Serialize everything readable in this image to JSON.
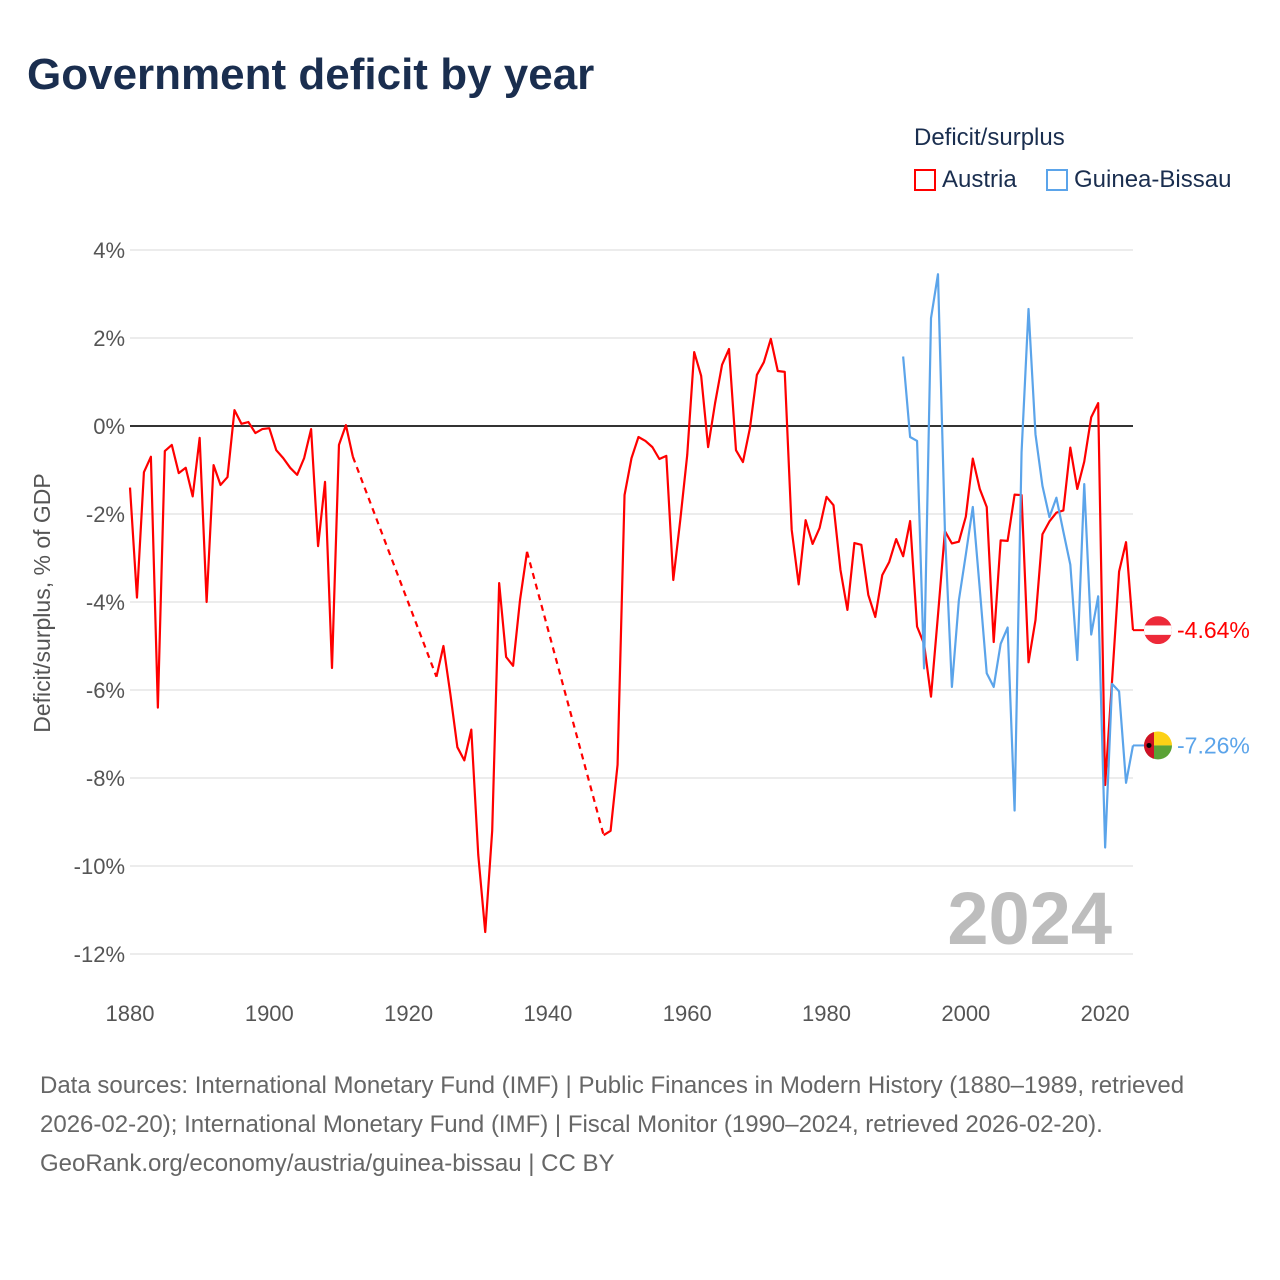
{
  "chart_data": {
    "type": "line",
    "title": "Government deficit by year",
    "ylabel": "Deficit/surplus, % of GDP",
    "xlabel": "",
    "xlim": [
      1880,
      2024
    ],
    "ylim": [
      -12,
      4
    ],
    "yticks": [
      4,
      2,
      0,
      -2,
      -4,
      -6,
      -8,
      -10,
      -12
    ],
    "ytick_labels": [
      "4%",
      "2%",
      "0%",
      "-2%",
      "-4%",
      "-6%",
      "-8%",
      "-10%",
      "-12%"
    ],
    "xticks": [
      1880,
      1900,
      1920,
      1940,
      1960,
      1980,
      2000,
      2020
    ],
    "xtick_labels": [
      "1880",
      "1900",
      "1920",
      "1940",
      "1960",
      "1980",
      "2000",
      "2020"
    ],
    "legend_title": "Deficit/surplus",
    "legend_position": "top-right",
    "year_label": "2024",
    "series": [
      {
        "name": "Austria",
        "color": "#ff0000",
        "end_label": "-4.64%",
        "points": [
          [
            1880,
            -1.4
          ],
          [
            1881,
            -3.9
          ],
          [
            1882,
            -1.05
          ],
          [
            1883,
            -0.7
          ],
          [
            1884,
            -6.4
          ],
          [
            1885,
            -0.57
          ],
          [
            1886,
            -0.43
          ],
          [
            1887,
            -1.07
          ],
          [
            1888,
            -0.95
          ],
          [
            1889,
            -1.6
          ],
          [
            1890,
            -0.27
          ],
          [
            1891,
            -4.0
          ],
          [
            1892,
            -0.89
          ],
          [
            1893,
            -1.34
          ],
          [
            1894,
            -1.16
          ],
          [
            1895,
            0.36
          ],
          [
            1896,
            0.05
          ],
          [
            1897,
            0.09
          ],
          [
            1898,
            -0.16
          ],
          [
            1899,
            -0.07
          ],
          [
            1900,
            -0.05
          ],
          [
            1901,
            -0.55
          ],
          [
            1902,
            -0.73
          ],
          [
            1903,
            -0.95
          ],
          [
            1904,
            -1.11
          ],
          [
            1905,
            -0.73
          ],
          [
            1906,
            -0.07
          ],
          [
            1907,
            -2.73
          ],
          [
            1908,
            -1.27
          ],
          [
            1909,
            -5.5
          ],
          [
            1910,
            -0.43
          ],
          [
            1911,
            0.02
          ],
          [
            1912,
            -0.7
          ],
          [
            1924,
            -5.7
          ],
          [
            1925,
            -5.0
          ],
          [
            1926,
            -6.1
          ],
          [
            1927,
            -7.3
          ],
          [
            1928,
            -7.6
          ],
          [
            1929,
            -6.9
          ],
          [
            1930,
            -9.75
          ],
          [
            1931,
            -11.5
          ],
          [
            1932,
            -9.2
          ],
          [
            1933,
            -3.57
          ],
          [
            1934,
            -5.25
          ],
          [
            1935,
            -5.45
          ],
          [
            1936,
            -3.95
          ],
          [
            1937,
            -2.86
          ],
          [
            1948,
            -9.3
          ],
          [
            1949,
            -9.2
          ],
          [
            1950,
            -7.7
          ],
          [
            1951,
            -1.57
          ],
          [
            1952,
            -0.73
          ],
          [
            1953,
            -0.25
          ],
          [
            1954,
            -0.34
          ],
          [
            1955,
            -0.48
          ],
          [
            1956,
            -0.75
          ],
          [
            1957,
            -0.68
          ],
          [
            1958,
            -3.5
          ],
          [
            1959,
            -2.14
          ],
          [
            1960,
            -0.66
          ],
          [
            1961,
            1.68
          ],
          [
            1962,
            1.14
          ],
          [
            1963,
            -0.48
          ],
          [
            1964,
            0.52
          ],
          [
            1965,
            1.39
          ],
          [
            1966,
            1.75
          ],
          [
            1967,
            -0.55
          ],
          [
            1968,
            -0.82
          ],
          [
            1969,
            -0.05
          ],
          [
            1970,
            1.16
          ],
          [
            1971,
            1.45
          ],
          [
            1972,
            1.98
          ],
          [
            1973,
            1.25
          ],
          [
            1974,
            1.23
          ],
          [
            1975,
            -2.36
          ],
          [
            1976,
            -3.6
          ],
          [
            1977,
            -2.14
          ],
          [
            1978,
            -2.68
          ],
          [
            1979,
            -2.32
          ],
          [
            1980,
            -1.61
          ],
          [
            1981,
            -1.8
          ],
          [
            1982,
            -3.27
          ],
          [
            1983,
            -4.18
          ],
          [
            1984,
            -2.66
          ],
          [
            1985,
            -2.7
          ],
          [
            1986,
            -3.84
          ],
          [
            1987,
            -4.34
          ],
          [
            1988,
            -3.39
          ],
          [
            1989,
            -3.09
          ],
          [
            1990,
            -2.57
          ],
          [
            1991,
            -2.96
          ],
          [
            1992,
            -2.16
          ],
          [
            1993,
            -4.56
          ],
          [
            1994,
            -4.95
          ],
          [
            1995,
            -6.15
          ],
          [
            1996,
            -4.3
          ],
          [
            1997,
            -2.39
          ],
          [
            1998,
            -2.67
          ],
          [
            1999,
            -2.63
          ],
          [
            2000,
            -2.06
          ],
          [
            2001,
            -0.74
          ],
          [
            2002,
            -1.43
          ],
          [
            2003,
            -1.84
          ],
          [
            2004,
            -4.91
          ],
          [
            2005,
            -2.6
          ],
          [
            2006,
            -2.61
          ],
          [
            2007,
            -1.56
          ],
          [
            2008,
            -1.57
          ],
          [
            2009,
            -5.37
          ],
          [
            2010,
            -4.41
          ],
          [
            2011,
            -2.46
          ],
          [
            2012,
            -2.17
          ],
          [
            2013,
            -1.97
          ],
          [
            2014,
            -1.92
          ],
          [
            2015,
            -0.49
          ],
          [
            2016,
            -1.43
          ],
          [
            2017,
            -0.81
          ],
          [
            2018,
            0.2
          ],
          [
            2019,
            0.52
          ],
          [
            2020,
            -8.16
          ],
          [
            2021,
            -5.77
          ],
          [
            2022,
            -3.31
          ],
          [
            2023,
            -2.64
          ],
          [
            2024,
            -4.64
          ]
        ]
      },
      {
        "name": "Guinea-Bissau",
        "color": "#5ba4ea",
        "end_label": "-7.26%",
        "points": [
          [
            1991,
            1.58
          ],
          [
            1992,
            -0.25
          ],
          [
            1993,
            -0.34
          ],
          [
            1994,
            -5.51
          ],
          [
            1995,
            2.45
          ],
          [
            1996,
            3.45
          ],
          [
            1997,
            -2.4
          ],
          [
            1998,
            -5.93
          ],
          [
            1999,
            -3.96
          ],
          [
            2000,
            -2.92
          ],
          [
            2001,
            -1.84
          ],
          [
            2002,
            -3.7
          ],
          [
            2003,
            -5.62
          ],
          [
            2004,
            -5.93
          ],
          [
            2005,
            -4.95
          ],
          [
            2006,
            -4.58
          ],
          [
            2007,
            -8.74
          ],
          [
            2008,
            -0.6
          ],
          [
            2009,
            2.66
          ],
          [
            2010,
            -0.19
          ],
          [
            2011,
            -1.36
          ],
          [
            2012,
            -2.07
          ],
          [
            2013,
            -1.63
          ],
          [
            2014,
            -2.4
          ],
          [
            2015,
            -3.15
          ],
          [
            2016,
            -5.32
          ],
          [
            2017,
            -1.32
          ],
          [
            2018,
            -4.74
          ],
          [
            2019,
            -3.87
          ],
          [
            2020,
            -9.58
          ],
          [
            2021,
            -5.86
          ],
          [
            2022,
            -6.03
          ],
          [
            2023,
            -8.11
          ],
          [
            2024,
            -7.26
          ]
        ]
      }
    ]
  },
  "footer": {
    "sources": "Data sources: International Monetary Fund (IMF) | Public Finances in Modern History (1880–1989, retrieved 2026-02-20); International Monetary Fund (IMF) | Fiscal Monitor (1990–2024, retrieved 2026-02-20).",
    "credit": "GeoRank.org/economy/austria/guinea-bissau | CC BY"
  }
}
